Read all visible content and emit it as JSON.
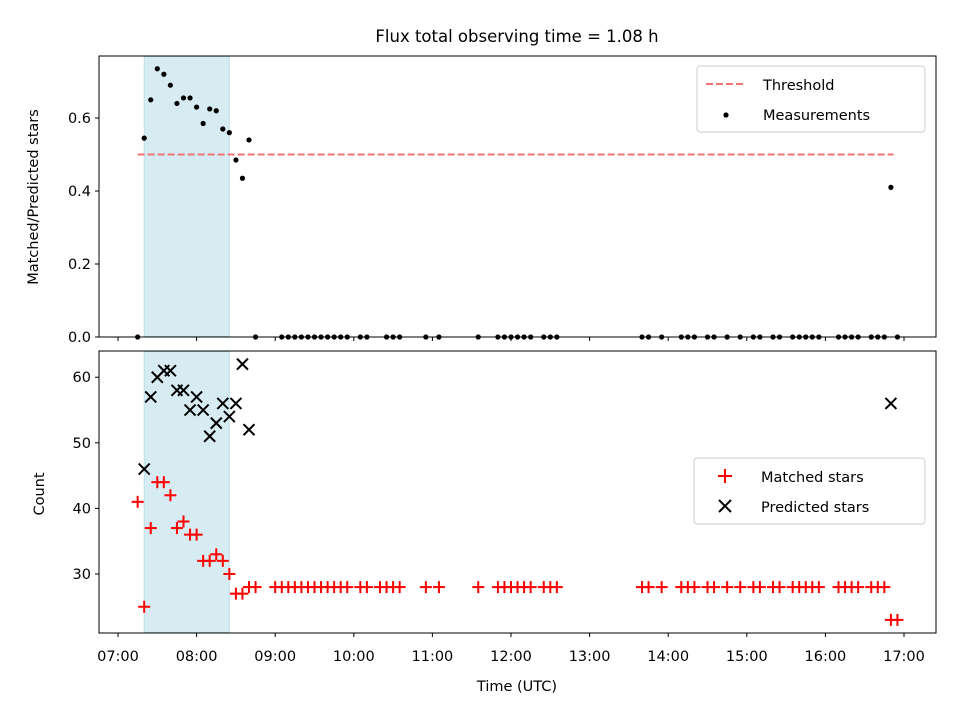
{
  "figure_title": "Flux total observing time = 1.08 h",
  "colors": {
    "threshold": "#f07474",
    "measurement": "#000000",
    "matched": "#ff0000",
    "predicted": "#000000",
    "span": "#add8e6"
  },
  "chart_data": [
    {
      "type": "scatter",
      "title": "Flux total observing time = 1.08 h",
      "xlabel": "",
      "ylabel": "Matched/Predicted stars",
      "xlim": [
        "07:00",
        "17:00"
      ],
      "ylim": [
        0,
        0.77
      ],
      "yticks": [
        "0.0",
        "0.2",
        "0.4",
        "0.6"
      ],
      "highlight_span": [
        "07:20",
        "08:25"
      ],
      "legend": {
        "placement": "top-right",
        "entries": [
          "Threshold",
          "Measurements"
        ]
      },
      "threshold": {
        "name": "Threshold",
        "y": 0.5,
        "x_range": [
          "07:15",
          "16:52"
        ]
      },
      "series": [
        {
          "name": "Measurements",
          "marker": "dot",
          "points": [
            [
              "07:15",
              0.0
            ],
            [
              "07:20",
              0.545
            ],
            [
              "07:25",
              0.65
            ],
            [
              "07:30",
              0.735
            ],
            [
              "07:35",
              0.72
            ],
            [
              "07:40",
              0.69
            ],
            [
              "07:45",
              0.64
            ],
            [
              "07:50",
              0.655
            ],
            [
              "07:55",
              0.655
            ],
            [
              "08:00",
              0.63
            ],
            [
              "08:05",
              0.585
            ],
            [
              "08:10",
              0.625
            ],
            [
              "08:15",
              0.62
            ],
            [
              "08:20",
              0.57
            ],
            [
              "08:25",
              0.56
            ],
            [
              "08:30",
              0.485
            ],
            [
              "08:35",
              0.435
            ],
            [
              "08:40",
              0.54
            ],
            [
              "08:45",
              0.0
            ],
            [
              "09:05",
              0.0
            ],
            [
              "09:10",
              0.0
            ],
            [
              "09:15",
              0.0
            ],
            [
              "09:20",
              0.0
            ],
            [
              "09:25",
              0.0
            ],
            [
              "09:30",
              0.0
            ],
            [
              "09:35",
              0.0
            ],
            [
              "09:40",
              0.0
            ],
            [
              "09:45",
              0.0
            ],
            [
              "09:50",
              0.0
            ],
            [
              "09:55",
              0.0
            ],
            [
              "10:05",
              0.0
            ],
            [
              "10:10",
              0.0
            ],
            [
              "10:25",
              0.0
            ],
            [
              "10:30",
              0.0
            ],
            [
              "10:35",
              0.0
            ],
            [
              "10:55",
              0.0
            ],
            [
              "11:05",
              0.0
            ],
            [
              "11:35",
              0.0
            ],
            [
              "11:50",
              0.0
            ],
            [
              "11:55",
              0.0
            ],
            [
              "12:00",
              0.0
            ],
            [
              "12:05",
              0.0
            ],
            [
              "12:10",
              0.0
            ],
            [
              "12:15",
              0.0
            ],
            [
              "12:25",
              0.0
            ],
            [
              "12:30",
              0.0
            ],
            [
              "12:35",
              0.0
            ],
            [
              "13:40",
              0.0
            ],
            [
              "13:45",
              0.0
            ],
            [
              "13:55",
              0.0
            ],
            [
              "14:10",
              0.0
            ],
            [
              "14:15",
              0.0
            ],
            [
              "14:20",
              0.0
            ],
            [
              "14:30",
              0.0
            ],
            [
              "14:35",
              0.0
            ],
            [
              "14:45",
              0.0
            ],
            [
              "14:55",
              0.0
            ],
            [
              "15:05",
              0.0
            ],
            [
              "15:10",
              0.0
            ],
            [
              "15:20",
              0.0
            ],
            [
              "15:25",
              0.0
            ],
            [
              "15:35",
              0.0
            ],
            [
              "15:40",
              0.0
            ],
            [
              "15:45",
              0.0
            ],
            [
              "15:50",
              0.0
            ],
            [
              "15:55",
              0.0
            ],
            [
              "16:10",
              0.0
            ],
            [
              "16:15",
              0.0
            ],
            [
              "16:20",
              0.0
            ],
            [
              "16:25",
              0.0
            ],
            [
              "16:35",
              0.0
            ],
            [
              "16:40",
              0.0
            ],
            [
              "16:45",
              0.0
            ],
            [
              "16:50",
              0.41
            ],
            [
              "16:55",
              0.0
            ]
          ]
        }
      ]
    },
    {
      "type": "scatter",
      "title": "",
      "xlabel": "Time (UTC)",
      "ylabel": "Count",
      "xlim": [
        "07:00",
        "17:00"
      ],
      "ylim": [
        21,
        64
      ],
      "xticks": [
        "07:00",
        "08:00",
        "09:00",
        "10:00",
        "11:00",
        "12:00",
        "13:00",
        "14:00",
        "15:00",
        "16:00",
        "17:00"
      ],
      "yticks": [
        "30",
        "40",
        "50",
        "60"
      ],
      "highlight_span": [
        "07:20",
        "08:25"
      ],
      "legend": {
        "placement": "center-right",
        "entries": [
          "Matched stars",
          "Predicted stars"
        ]
      },
      "series": [
        {
          "name": "Matched stars",
          "marker": "plus",
          "points": [
            [
              "07:15",
              41
            ],
            [
              "07:20",
              25
            ],
            [
              "07:25",
              37
            ],
            [
              "07:30",
              44
            ],
            [
              "07:35",
              44
            ],
            [
              "07:40",
              42
            ],
            [
              "07:45",
              37
            ],
            [
              "07:50",
              38
            ],
            [
              "07:55",
              36
            ],
            [
              "08:00",
              36
            ],
            [
              "08:05",
              32
            ],
            [
              "08:10",
              32
            ],
            [
              "08:15",
              33
            ],
            [
              "08:20",
              32
            ],
            [
              "08:25",
              30
            ],
            [
              "08:30",
              27
            ],
            [
              "08:35",
              27
            ],
            [
              "08:40",
              28
            ],
            [
              "08:45",
              28
            ],
            [
              "09:00",
              28
            ],
            [
              "09:05",
              28
            ],
            [
              "09:10",
              28
            ],
            [
              "09:15",
              28
            ],
            [
              "09:20",
              28
            ],
            [
              "09:25",
              28
            ],
            [
              "09:30",
              28
            ],
            [
              "09:35",
              28
            ],
            [
              "09:40",
              28
            ],
            [
              "09:45",
              28
            ],
            [
              "09:50",
              28
            ],
            [
              "09:55",
              28
            ],
            [
              "10:05",
              28
            ],
            [
              "10:10",
              28
            ],
            [
              "10:20",
              28
            ],
            [
              "10:25",
              28
            ],
            [
              "10:30",
              28
            ],
            [
              "10:35",
              28
            ],
            [
              "10:55",
              28
            ],
            [
              "11:05",
              28
            ],
            [
              "11:35",
              28
            ],
            [
              "11:50",
              28
            ],
            [
              "11:55",
              28
            ],
            [
              "12:00",
              28
            ],
            [
              "12:05",
              28
            ],
            [
              "12:10",
              28
            ],
            [
              "12:15",
              28
            ],
            [
              "12:25",
              28
            ],
            [
              "12:30",
              28
            ],
            [
              "12:35",
              28
            ],
            [
              "13:40",
              28
            ],
            [
              "13:45",
              28
            ],
            [
              "13:55",
              28
            ],
            [
              "14:10",
              28
            ],
            [
              "14:15",
              28
            ],
            [
              "14:20",
              28
            ],
            [
              "14:30",
              28
            ],
            [
              "14:35",
              28
            ],
            [
              "14:45",
              28
            ],
            [
              "14:55",
              28
            ],
            [
              "15:05",
              28
            ],
            [
              "15:10",
              28
            ],
            [
              "15:20",
              28
            ],
            [
              "15:25",
              28
            ],
            [
              "15:35",
              28
            ],
            [
              "15:40",
              28
            ],
            [
              "15:45",
              28
            ],
            [
              "15:50",
              28
            ],
            [
              "15:55",
              28
            ],
            [
              "16:10",
              28
            ],
            [
              "16:15",
              28
            ],
            [
              "16:20",
              28
            ],
            [
              "16:25",
              28
            ],
            [
              "16:35",
              28
            ],
            [
              "16:40",
              28
            ],
            [
              "16:45",
              28
            ],
            [
              "16:50",
              23
            ],
            [
              "16:55",
              23
            ]
          ]
        },
        {
          "name": "Predicted stars",
          "marker": "x",
          "points": [
            [
              "07:20",
              46
            ],
            [
              "07:25",
              57
            ],
            [
              "07:30",
              60
            ],
            [
              "07:35",
              61
            ],
            [
              "07:40",
              61
            ],
            [
              "07:45",
              58
            ],
            [
              "07:50",
              58
            ],
            [
              "07:55",
              55
            ],
            [
              "08:00",
              57
            ],
            [
              "08:05",
              55
            ],
            [
              "08:10",
              51
            ],
            [
              "08:15",
              53
            ],
            [
              "08:20",
              56
            ],
            [
              "08:25",
              54
            ],
            [
              "08:30",
              56
            ],
            [
              "08:35",
              62
            ],
            [
              "08:40",
              52
            ],
            [
              "16:50",
              56
            ]
          ]
        }
      ]
    }
  ]
}
